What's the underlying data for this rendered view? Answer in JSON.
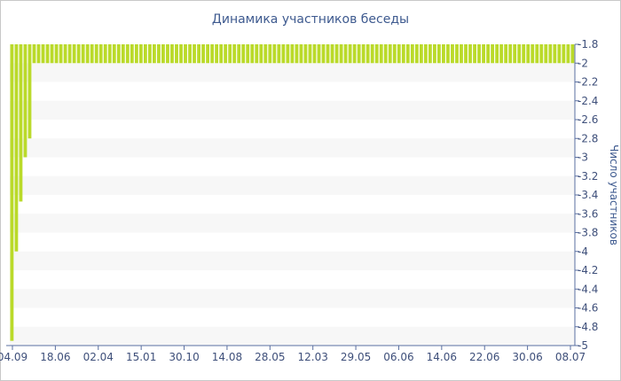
{
  "chart_data": {
    "type": "bar",
    "title": "Динамика участников беседы",
    "xlabel": "",
    "ylabel": "Число участников",
    "ylim": [
      -5,
      -1.8
    ],
    "y_ticks": [
      "-1.8",
      "-2",
      "-2.2",
      "-2.4",
      "-2.6",
      "-2.8",
      "-3",
      "-3.2",
      "-3.4",
      "-3.6",
      "-3.8",
      "-4",
      "-4.2",
      "-4.4",
      "-4.6",
      "-4.8",
      "-5"
    ],
    "x_tick_labels": [
      "04.09",
      "18.06",
      "02.04",
      "15.01",
      "30.10",
      "14.08",
      "28.05",
      "12.03",
      "29.05",
      "06.06",
      "14.06",
      "22.06",
      "30.06",
      "08.07"
    ],
    "bar_color": "#bada2a",
    "band_color": "#f7f7f7",
    "grid": "horizontal bands",
    "y_axis_position": "right",
    "values": [
      -4.95,
      -4,
      -3.47,
      -3,
      -2.8,
      -2,
      -2,
      -2,
      -2,
      -2,
      -2,
      -2,
      -2,
      -2,
      -2,
      -2,
      -2,
      -2,
      -2,
      -2,
      -2,
      -2,
      -2,
      -2,
      -2,
      -2,
      -2,
      -2,
      -2,
      -2,
      -2,
      -2,
      -2,
      -2,
      -2,
      -2,
      -2,
      -2,
      -2,
      -2,
      -2,
      -2,
      -2,
      -2,
      -2,
      -2,
      -2,
      -2,
      -2,
      -2,
      -2,
      -2,
      -2,
      -2,
      -2,
      -2,
      -2,
      -2,
      -2,
      -2,
      -2,
      -2,
      -2,
      -2,
      -2,
      -2,
      -2,
      -2,
      -2,
      -2,
      -2,
      -2,
      -2,
      -2,
      -2,
      -2,
      -2,
      -2,
      -2,
      -2,
      -2,
      -2,
      -2,
      -2,
      -2,
      -2,
      -2,
      -2,
      -2,
      -2,
      -2,
      -2,
      -2,
      -2,
      -2,
      -2,
      -2,
      -2,
      -2,
      -2,
      -2,
      -2,
      -2,
      -2,
      -2,
      -2,
      -2,
      -2,
      -2,
      -2,
      -2,
      -2,
      -2,
      -2,
      -2,
      -2,
      -2,
      -2,
      -2,
      -2,
      -2,
      -2,
      -2,
      -2,
      -2,
      -2,
      -2
    ]
  }
}
